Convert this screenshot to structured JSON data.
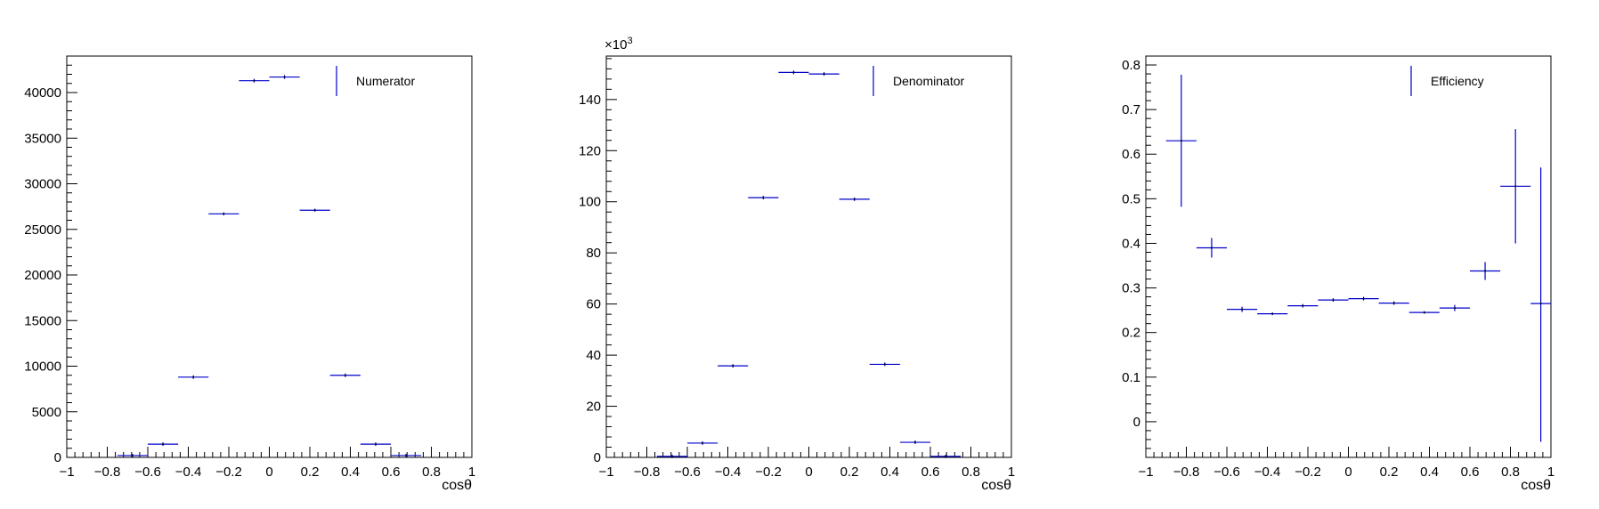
{
  "colors": {
    "series": "#0000cc",
    "frame": "#000000",
    "background": "#ffffff",
    "legend_bg": "#ffffff"
  },
  "chart_data": [
    {
      "type": "histogram-errorbars",
      "title": "",
      "xlabel": "cosθ",
      "ylabel": "",
      "xlim": [
        -1,
        1
      ],
      "ylim": [
        0,
        44000
      ],
      "x_ticks": [
        "−1",
        "−0.8",
        "−0.6",
        "−0.4",
        "−0.2",
        "0",
        "0.2",
        "0.4",
        "0.6",
        "0.8",
        "1"
      ],
      "x_tick_values": [
        -1,
        -0.8,
        -0.6,
        -0.4,
        -0.2,
        0,
        0.2,
        0.4,
        0.6,
        0.8,
        1
      ],
      "y_ticks": [
        "0",
        "5000",
        "10000",
        "15000",
        "20000",
        "25000",
        "30000",
        "35000",
        "40000"
      ],
      "y_tick_values": [
        0,
        5000,
        10000,
        15000,
        20000,
        25000,
        30000,
        35000,
        40000
      ],
      "y_multiplier": "",
      "legend": {
        "label": "Numerator",
        "position": "top-right"
      },
      "series": [
        {
          "name": "Numerator",
          "x_low": [
            -0.75,
            -0.6,
            -0.45,
            -0.3,
            -0.15,
            0,
            0.15,
            0.3,
            0.45,
            0.6
          ],
          "x_high": [
            -0.6,
            -0.45,
            -0.3,
            -0.15,
            0,
            0.15,
            0.3,
            0.45,
            0.6,
            0.75
          ],
          "values": [
            200,
            1450,
            8800,
            26700,
            41300,
            41700,
            27100,
            9000,
            1450,
            200
          ],
          "errors": [
            15,
            40,
            95,
            165,
            205,
            205,
            165,
            95,
            40,
            15
          ]
        }
      ]
    },
    {
      "type": "histogram-errorbars",
      "title": "",
      "xlabel": "cosθ",
      "ylabel": "",
      "xlim": [
        -1,
        1
      ],
      "ylim": [
        0,
        157
      ],
      "x_ticks": [
        "−1",
        "−0.8",
        "−0.6",
        "−0.4",
        "−0.2",
        "0",
        "0.2",
        "0.4",
        "0.6",
        "0.8",
        "1"
      ],
      "x_tick_values": [
        -1,
        -0.8,
        -0.6,
        -0.4,
        -0.2,
        0,
        0.2,
        0.4,
        0.6,
        0.8,
        1
      ],
      "y_ticks": [
        "0",
        "20",
        "40",
        "60",
        "80",
        "100",
        "120",
        "140"
      ],
      "y_tick_values": [
        0,
        20,
        40,
        60,
        80,
        100,
        120,
        140
      ],
      "y_multiplier": "×10",
      "y_multiplier_exp": "3",
      "legend": {
        "label": "Denominator",
        "position": "top-right"
      },
      "series": [
        {
          "name": "Denominator",
          "x_low": [
            -0.75,
            -0.6,
            -0.45,
            -0.3,
            -0.15,
            0,
            0.15,
            0.3,
            0.45,
            0.6
          ],
          "x_high": [
            -0.6,
            -0.45,
            -0.3,
            -0.15,
            0,
            0.15,
            0.3,
            0.45,
            0.6,
            0.75
          ],
          "values": [
            0.4,
            5.6,
            35.8,
            101.6,
            150.6,
            150.0,
            101.0,
            36.4,
            5.9,
            0.4
          ],
          "errors": [
            0.02,
            0.08,
            0.19,
            0.32,
            0.39,
            0.39,
            0.32,
            0.19,
            0.08,
            0.02
          ]
        }
      ]
    },
    {
      "type": "efficiency-errorbars",
      "title": "",
      "xlabel": "cosθ",
      "ylabel": "",
      "xlim": [
        -1,
        1
      ],
      "ylim": [
        -0.08,
        0.82
      ],
      "x_ticks": [
        "−1",
        "−0.8",
        "−0.6",
        "−0.4",
        "−0.2",
        "0",
        "0.2",
        "0.4",
        "0.6",
        "0.8",
        "1"
      ],
      "x_tick_values": [
        -1,
        -0.8,
        -0.6,
        -0.4,
        -0.2,
        0,
        0.2,
        0.4,
        0.6,
        0.8,
        1
      ],
      "y_ticks": [
        "0",
        "0.1",
        "0.2",
        "0.3",
        "0.4",
        "0.5",
        "0.6",
        "0.7",
        "0.8"
      ],
      "y_tick_values": [
        0,
        0.1,
        0.2,
        0.3,
        0.4,
        0.5,
        0.6,
        0.7,
        0.8
      ],
      "y_multiplier": "",
      "legend": {
        "label": "Efficiency",
        "position": "top-right"
      },
      "series": [
        {
          "name": "Efficiency",
          "x_low": [
            -0.9,
            -0.75,
            -0.6,
            -0.45,
            -0.3,
            -0.15,
            0,
            0.15,
            0.3,
            0.45,
            0.6,
            0.75,
            0.9
          ],
          "x_high": [
            -0.75,
            -0.6,
            -0.45,
            -0.3,
            -0.15,
            0,
            0.15,
            0.3,
            0.45,
            0.6,
            0.75,
            0.9,
            1.0
          ],
          "values": [
            0.63,
            0.39,
            0.252,
            0.242,
            0.26,
            0.273,
            0.276,
            0.266,
            0.245,
            0.255,
            0.338,
            0.528,
            0.265
          ],
          "err_low": [
            0.148,
            0.022,
            0.006,
            0.003,
            0.002,
            0.001,
            0.001,
            0.002,
            0.003,
            0.007,
            0.02,
            0.128,
            0.31
          ],
          "err_high": [
            0.148,
            0.022,
            0.006,
            0.003,
            0.002,
            0.001,
            0.001,
            0.002,
            0.003,
            0.007,
            0.02,
            0.128,
            0.305
          ]
        }
      ]
    }
  ]
}
